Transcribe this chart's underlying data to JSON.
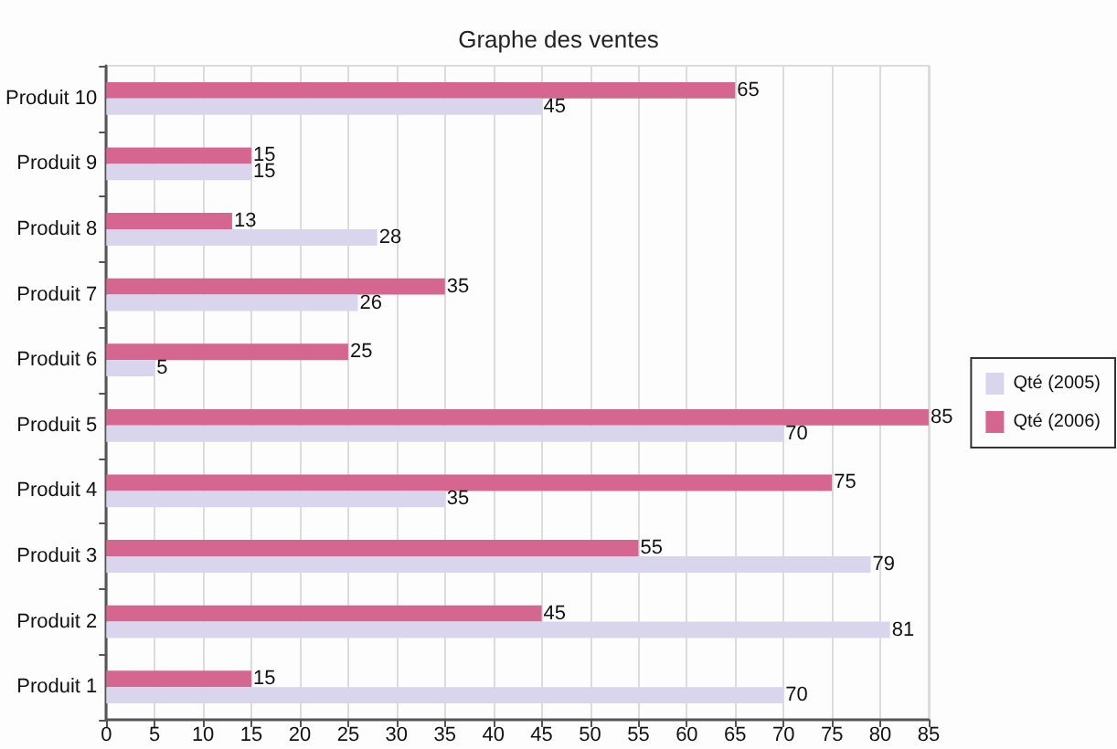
{
  "chart_data": {
    "type": "bar",
    "orientation": "horizontal",
    "title": "Graphe des ventes",
    "categories": [
      "Produit 10",
      "Produit 9",
      "Produit 8",
      "Produit 7",
      "Produit 6",
      "Produit 5",
      "Produit 4",
      "Produit 3",
      "Produit 2",
      "Produit 1"
    ],
    "series": [
      {
        "name": "Qté (2005)",
        "color": "#d9d5ec",
        "values": [
          45,
          15,
          28,
          26,
          5,
          70,
          35,
          79,
          81,
          70
        ]
      },
      {
        "name": "Qté (2006)",
        "color": "#d4668f",
        "values": [
          65,
          15,
          13,
          35,
          25,
          85,
          75,
          55,
          45,
          15
        ]
      }
    ],
    "xlim": [
      0,
      85
    ],
    "xticks": [
      0,
      5,
      10,
      15,
      20,
      25,
      30,
      35,
      40,
      45,
      50,
      55,
      60,
      65,
      70,
      75,
      80,
      85
    ],
    "grid": "x",
    "legend": "right",
    "data_labels": true
  }
}
